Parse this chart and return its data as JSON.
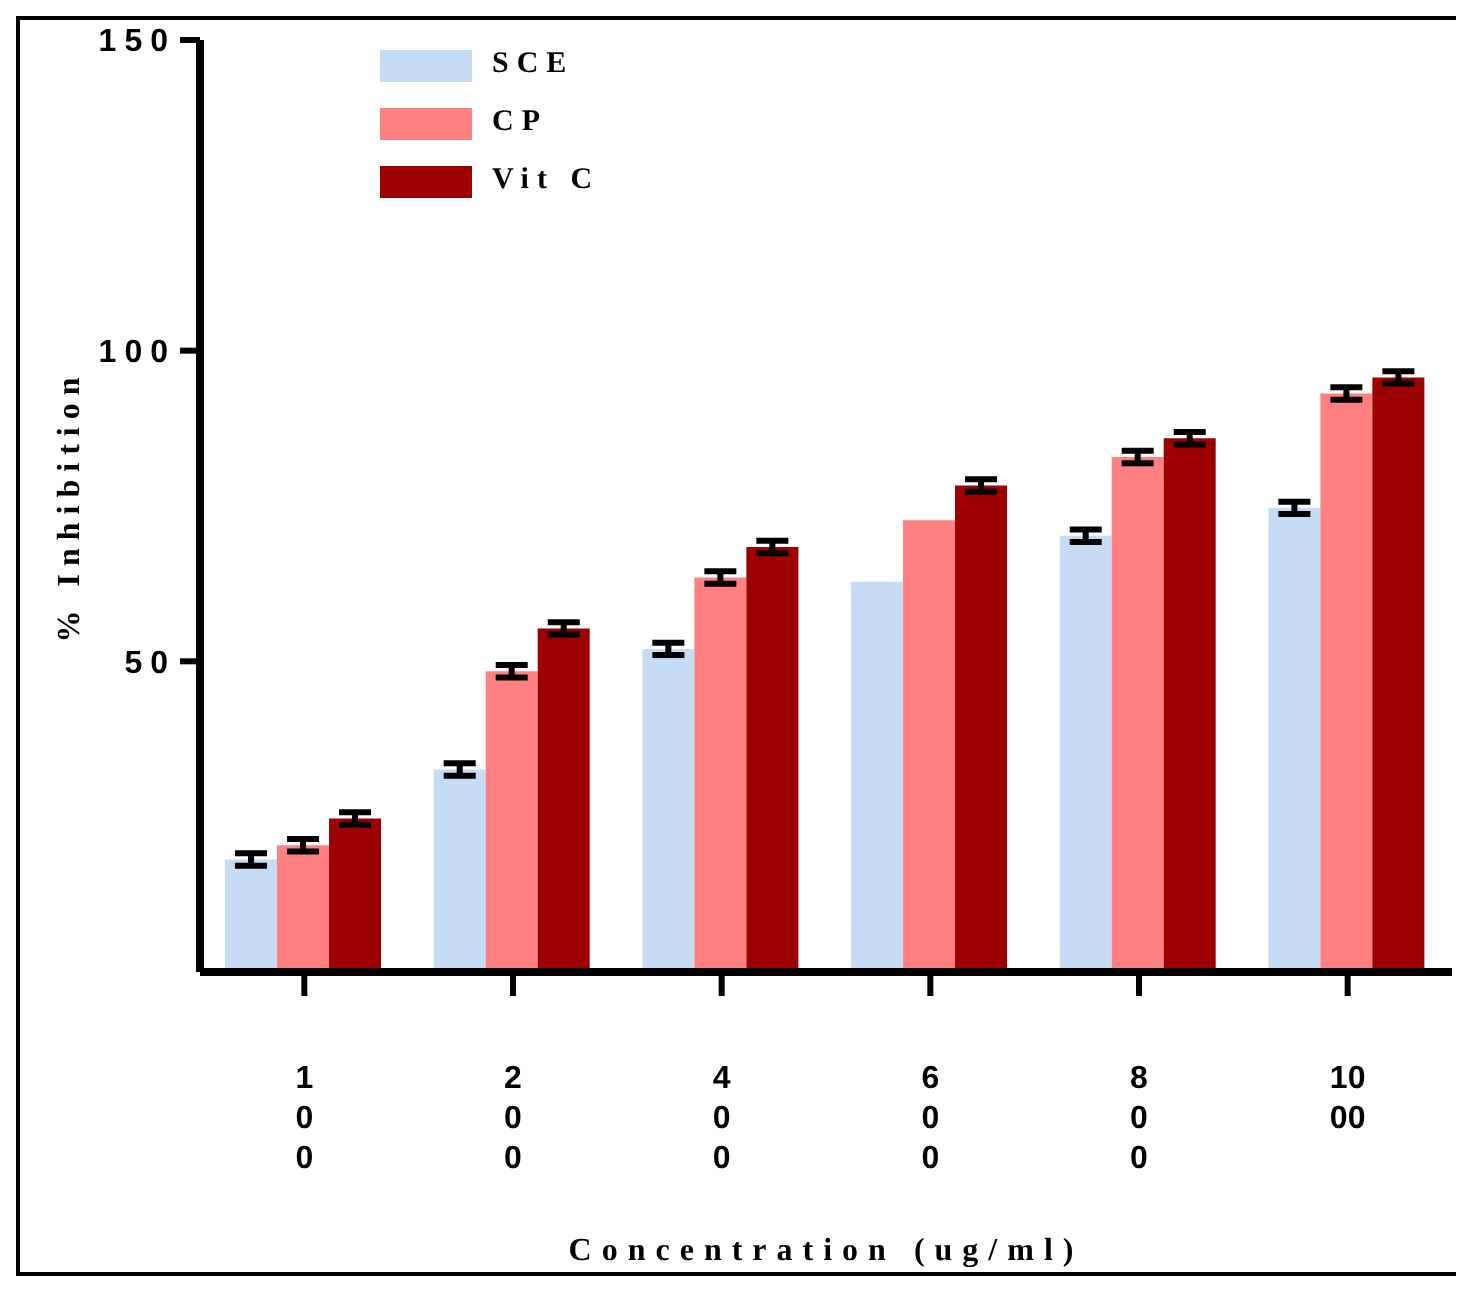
{
  "chart_data": {
    "type": "bar",
    "xlabel": "Concentration (ug/ml)",
    "ylabel": "% Inhibition",
    "categories": [
      "100",
      "200",
      "400",
      "600",
      "800",
      "1000"
    ],
    "ylim": [
      0,
      150
    ],
    "yticks": [
      50,
      100,
      150
    ],
    "grid": false,
    "legend": "top",
    "series": [
      {
        "name": "SCE",
        "color": "#c6dcf5",
        "values": [
          18.1,
          32.6,
          52,
          62.8,
          70.2,
          74.7
        ],
        "errors": [
          1,
          1,
          1,
          null,
          1,
          1
        ]
      },
      {
        "name": "CP",
        "color": "#ff8080",
        "values": [
          20.4,
          48.4,
          63.5,
          72.7,
          82.9,
          93.1
        ],
        "errors": [
          1,
          1,
          1,
          null,
          1,
          1
        ]
      },
      {
        "name": "Vit C",
        "color": "#9c0000",
        "values": [
          24.7,
          55.3,
          68.4,
          78.3,
          85.9,
          95.7
        ],
        "errors": [
          1,
          1,
          1,
          1,
          1,
          1
        ]
      }
    ]
  }
}
